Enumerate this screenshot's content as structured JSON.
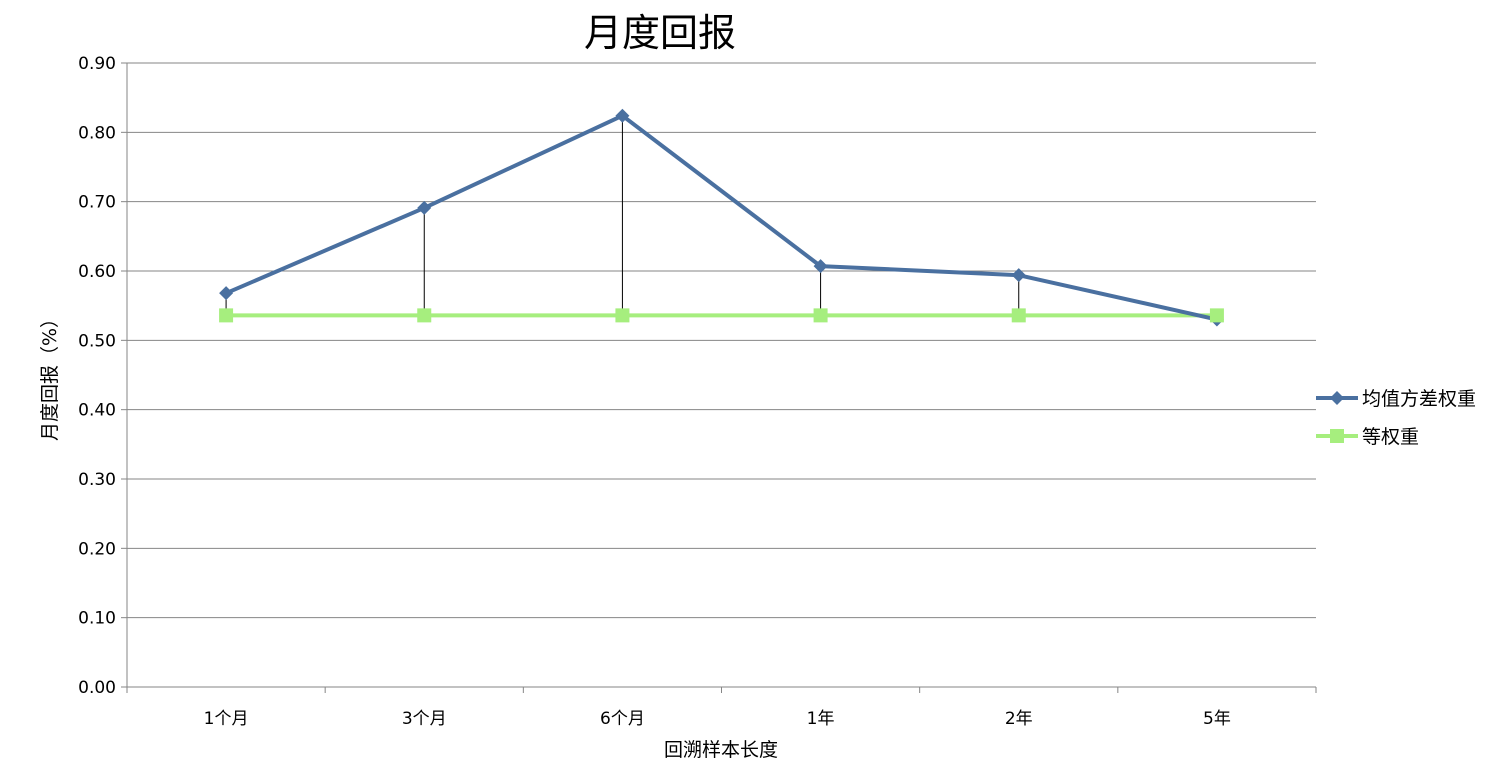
{
  "chart_data": {
    "type": "line",
    "title": "月度回报",
    "xlabel": "回溯样本长度",
    "ylabel": "月度回报（%）",
    "ylim": [
      0,
      0.9
    ],
    "ytick_step": 0.1,
    "ytick_labels": [
      "0.00",
      "0.10",
      "0.20",
      "0.30",
      "0.40",
      "0.50",
      "0.60",
      "0.70",
      "0.80",
      "0.90"
    ],
    "grid": true,
    "legend_position": "right",
    "categories": [
      "1个月",
      "3个月",
      "6个月",
      "1年",
      "2年",
      "5年"
    ],
    "series": [
      {
        "name": "均值方差权重",
        "values": [
          0.568,
          0.691,
          0.824,
          0.607,
          0.594,
          0.53
        ],
        "color": "#4A70A0",
        "marker": "diamond"
      },
      {
        "name": "等权重",
        "values": [
          0.536,
          0.536,
          0.536,
          0.536,
          0.536,
          0.536
        ],
        "color": "#A6EE7E",
        "marker": "square"
      }
    ],
    "drop_lines": true
  }
}
